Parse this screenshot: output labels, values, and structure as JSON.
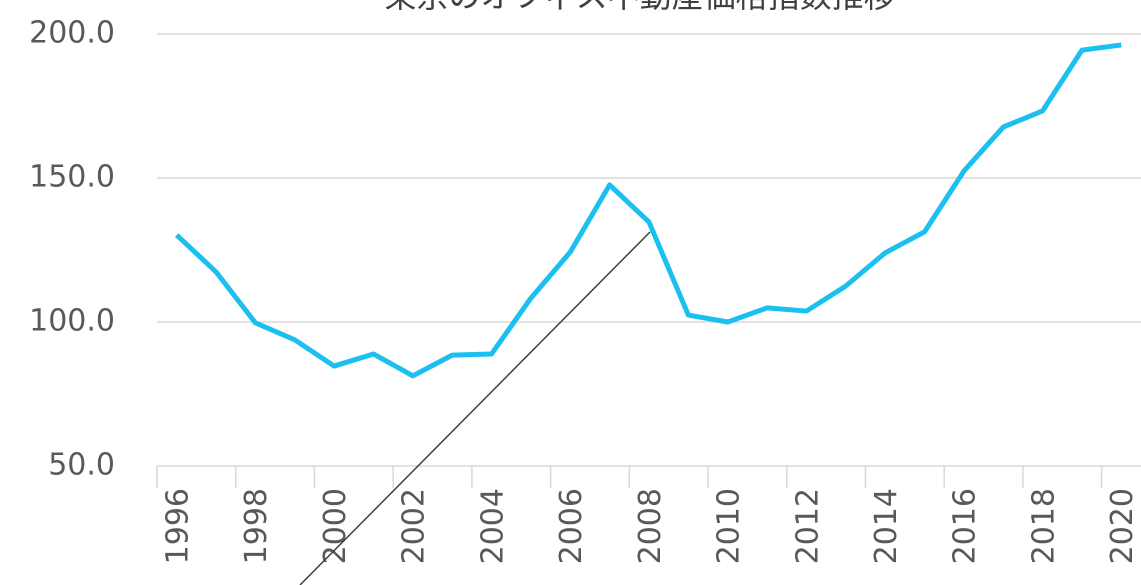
{
  "chart_data": {
    "type": "line",
    "title": "東京のオフィス不動産価格指数推移",
    "categories": [
      "1996",
      null,
      "1998",
      null,
      "2000",
      null,
      "2002",
      null,
      "2004",
      null,
      "2006",
      null,
      "2008",
      null,
      "2010",
      null,
      "2012",
      null,
      "2014",
      null,
      "2016",
      null,
      "2018",
      null,
      "2020"
    ],
    "series": [
      {
        "color": "#1bbff0",
        "values": [
          130.2,
          117.4,
          99.7,
          93.8,
          84.7,
          88.9,
          81.3,
          88.5,
          88.9,
          108.3,
          124.3,
          147.6,
          134.7,
          102.4,
          100.0,
          104.9,
          103.8,
          112.5,
          124.0,
          131.3,
          152.4,
          167.7,
          173.3,
          194.4,
          196.2
        ]
      }
    ],
    "ylim": [
      50,
      200
    ],
    "yticks": [
      {
        "value": 50,
        "label": "50.0"
      },
      {
        "value": 100,
        "label": "100.0"
      },
      {
        "value": 150,
        "label": "150.0"
      },
      {
        "value": 200,
        "label": "200.0"
      }
    ],
    "grid": true
  }
}
